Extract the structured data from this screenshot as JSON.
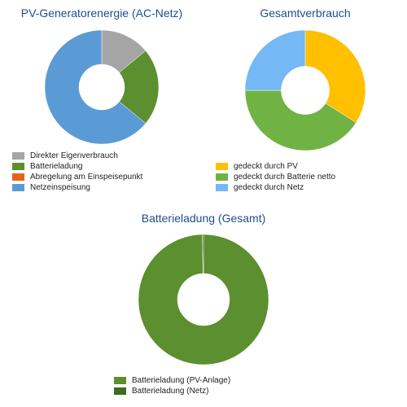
{
  "chart_data": [
    {
      "type": "pie",
      "title": "PV-Generatorenergie (AC-Netz)",
      "series": [
        {
          "name": "Direkter Eigenverbrauch",
          "value": 14,
          "color": "#a5a5a5"
        },
        {
          "name": "Batterieladung",
          "value": 22,
          "color": "#5b8f2f"
        },
        {
          "name": "Abregelung am Einspeisepunkt",
          "value": 0,
          "color": "#e8631a"
        },
        {
          "name": "Netzeinspeisung",
          "value": 64,
          "color": "#5b9bd5"
        }
      ],
      "legend": "bottom"
    },
    {
      "type": "pie",
      "title": "Gesamtverbrauch",
      "series": [
        {
          "name": "gedeckt durch PV",
          "value": 34,
          "color": "#ffc000"
        },
        {
          "name": "gedeckt durch Batterie netto",
          "value": 41,
          "color": "#70b344"
        },
        {
          "name": "gedeckt durch Netz",
          "value": 25,
          "color": "#74b8f5"
        }
      ],
      "legend": "bottom"
    },
    {
      "type": "pie",
      "title": "Batterieladung (Gesamt)",
      "series": [
        {
          "name": "Batterieladung (PV-Anlage)",
          "value": 99.7,
          "color": "#5b8f2f"
        },
        {
          "name": "Batterieladung (Netz)",
          "value": 0.3,
          "color": "#3d6b1f"
        }
      ],
      "legend": "bottom"
    }
  ]
}
